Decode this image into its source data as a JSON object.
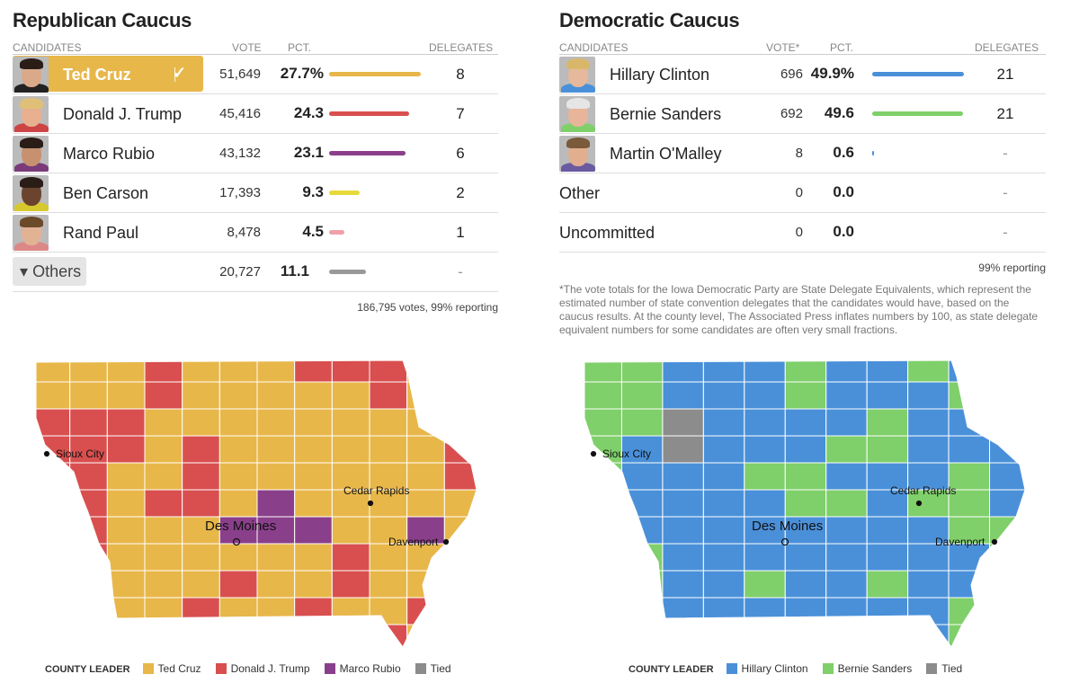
{
  "republican": {
    "title": "Republican Caucus",
    "headers": {
      "candidates": "CANDIDATES",
      "vote": "VOTE",
      "pct": "PCT.",
      "delegates": "DELEGATES"
    },
    "rows": [
      {
        "name": "Ted Cruz",
        "vote": "51,649",
        "pct": "27.7%",
        "pct_value": 27.7,
        "delegates": "8",
        "color": "#e8b74a",
        "winner": true,
        "skin": "#d9a98a",
        "hair": "#2a1d17",
        "suit": "#222"
      },
      {
        "name": "Donald J. Trump",
        "vote": "45,416",
        "pct": "24.3",
        "pct_value": 24.3,
        "delegates": "7",
        "color": "#d94f4f",
        "skin": "#e8b08e",
        "hair": "#e0c078",
        "suit": "#c44"
      },
      {
        "name": "Marco Rubio",
        "vote": "43,132",
        "pct": "23.1",
        "pct_value": 23.1,
        "delegates": "6",
        "color": "#8a3f8a",
        "skin": "#c7916f",
        "hair": "#2a1d17",
        "suit": "#7a3b7a"
      },
      {
        "name": "Ben Carson",
        "vote": "17,393",
        "pct": "9.3",
        "pct_value": 9.3,
        "delegates": "2",
        "color": "#e8d93a",
        "skin": "#6b4430",
        "hair": "#2a1d17",
        "suit": "#d6c92e"
      },
      {
        "name": "Rand Paul",
        "vote": "8,478",
        "pct": "4.5",
        "pct_value": 4.5,
        "delegates": "1",
        "color": "#f0a0a8",
        "skin": "#e2b295",
        "hair": "#6b4a2a",
        "suit": "#d88"
      }
    ],
    "others": {
      "label": "Others",
      "caret": "▾",
      "vote": "20,727",
      "pct": "11.1",
      "pct_value": 11.1,
      "delegates": "-",
      "color": "#999"
    },
    "footer": "186,795 votes, 99% reporting",
    "pct_max": 27.7
  },
  "democratic": {
    "title": "Democratic Caucus",
    "headers": {
      "candidates": "CANDIDATES",
      "vote": "VOTE*",
      "pct": "PCT.",
      "delegates": "DELEGATES"
    },
    "rows": [
      {
        "name": "Hillary Clinton",
        "vote": "696",
        "pct": "49.9%",
        "pct_value": 49.9,
        "delegates": "21",
        "color": "#4a90d9",
        "photo": true,
        "skin": "#e6b99c",
        "hair": "#d9b76a",
        "suit": "#4a90d9"
      },
      {
        "name": "Bernie Sanders",
        "vote": "692",
        "pct": "49.6",
        "pct_value": 49.6,
        "delegates": "21",
        "color": "#7fcf6a",
        "photo": true,
        "skin": "#e8b49a",
        "hair": "#e5e5e5",
        "suit": "#7fcf6a"
      },
      {
        "name": "Martin O'Malley",
        "vote": "8",
        "pct": "0.6",
        "pct_value": 0.6,
        "delegates": "-",
        "color": "#4a90d9",
        "photo": true,
        "skin": "#e2ae90",
        "hair": "#7a5a3a",
        "suit": "#6a5aa0"
      },
      {
        "name": "Other",
        "vote": "0",
        "pct": "0.0",
        "pct_value": 0,
        "delegates": "-",
        "color": "#ccc",
        "photo": false
      },
      {
        "name": "Uncommitted",
        "vote": "0",
        "pct": "0.0",
        "pct_value": 0,
        "delegates": "-",
        "color": "#ccc",
        "photo": false
      }
    ],
    "footer": "99% reporting",
    "note": "*The vote totals for the Iowa Democratic Party are State Delegate Equivalents, which represent the estimated number of state convention delegates that the candidates would have, based on the caucus results. At the county level, The Associated Press inflates numbers by 100, as state delegate equivalent numbers for some candidates are often very small fractions.",
    "pct_max": 49.9
  },
  "maps": {
    "cities": {
      "sioux_city": "Sioux City",
      "cedar_rapids": "Cedar Rapids",
      "des_moines": "Des Moines",
      "davenport": "Davenport"
    },
    "rep_legend": {
      "title": "COUNTY LEADER",
      "items": [
        {
          "label": "Ted Cruz",
          "color": "#e8b74a"
        },
        {
          "label": "Donald J. Trump",
          "color": "#d94f4f"
        },
        {
          "label": "Marco Rubio",
          "color": "#8a3f8a"
        },
        {
          "label": "Tied",
          "color": "#8c8c8c"
        }
      ]
    },
    "dem_legend": {
      "title": "COUNTY LEADER",
      "items": [
        {
          "label": "Hillary Clinton",
          "color": "#4a90d9"
        },
        {
          "label": "Bernie Sanders",
          "color": "#7fcf6a"
        },
        {
          "label": "Tied",
          "color": "#8c8c8c"
        }
      ]
    },
    "rep_grid": [
      "C C C T C C C T T T C C",
      "C C C T C C C C C T C C",
      "T T T C C C C C C C C C",
      "T T T C T C C C C C C T",
      "T T C C T C C C C C C T",
      "T T C T T C R C C C C C",
      "T T C C C R R R C C R C",
      "T T C C C C C C T C C T",
      "T T C C C T C C T C C C",
      "T C C C T C C T C C T C",
      "T C C C T T C C T T C C"
    ],
    "dem_grid": [
      "B B H H H B H H B H H",
      "B B H H H B H H H B B",
      "B B X H H H H B H H B",
      "B H X H H H B B H H H",
      "B H H H B B H H H B H",
      "H H H H H B B H B B H",
      "H H H H H H H H H B B",
      "B B H H H H H H H H B",
      "B B H H B H H B H H B",
      "H H H H H H H H H B X",
      "B B H H H H H H H B B"
    ]
  }
}
